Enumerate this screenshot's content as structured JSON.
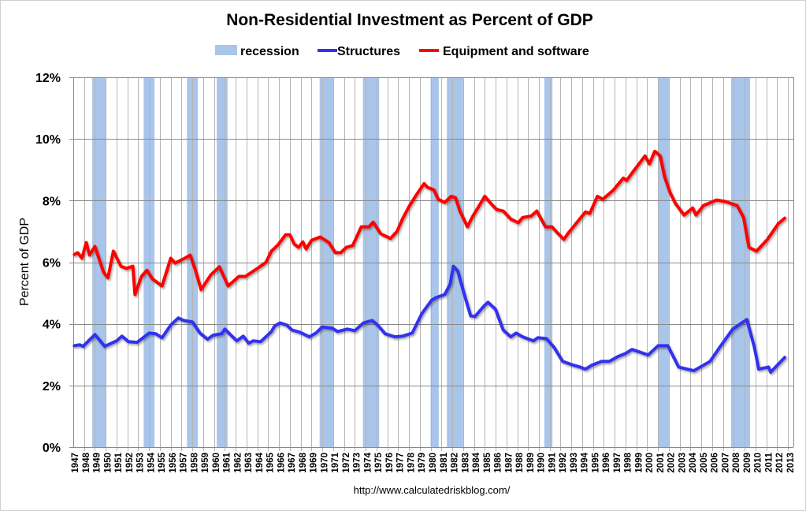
{
  "chart_data": {
    "type": "line",
    "title": "Non-Residential Investment as Percent of GDP",
    "xlabel": "",
    "ylabel": "Percent of GDP",
    "source_note": "http://www.calculatedriskblog.com/",
    "xlim": [
      1947,
      2013.5
    ],
    "ylim": [
      0,
      12
    ],
    "y_ticks": [
      "0%",
      "2%",
      "4%",
      "6%",
      "8%",
      "10%",
      "12%"
    ],
    "y_tick_values": [
      0,
      2,
      4,
      6,
      8,
      10,
      12
    ],
    "x_ticks": [
      "1947",
      "1948",
      "1949",
      "1950",
      "1951",
      "1952",
      "1953",
      "1954",
      "1955",
      "1956",
      "1957",
      "1958",
      "1959",
      "1960",
      "1961",
      "1962",
      "1963",
      "1964",
      "1965",
      "1966",
      "1967",
      "1968",
      "1969",
      "1970",
      "1971",
      "1972",
      "1973",
      "1974",
      "1975",
      "1976",
      "1977",
      "1978",
      "1979",
      "1980",
      "1981",
      "1982",
      "1983",
      "1984",
      "1985",
      "1986",
      "1987",
      "1988",
      "1989",
      "1990",
      "1991",
      "1992",
      "1993",
      "1994",
      "1995",
      "1996",
      "1997",
      "1998",
      "1999",
      "2000",
      "2001",
      "2002",
      "2003",
      "2004",
      "2005",
      "2006",
      "2007",
      "2008",
      "2009",
      "2010",
      "2011",
      "2012",
      "2013"
    ],
    "grid": {
      "horizontal": true,
      "vertical": true
    },
    "legend": {
      "placement": "top",
      "entries": [
        {
          "label": "recession",
          "kind": "area",
          "color": "#a9c5ea"
        },
        {
          "label": "Structures",
          "kind": "line",
          "color": "#3333ee"
        },
        {
          "label": "Equipment and software",
          "kind": "line",
          "color": "#ff0000"
        }
      ]
    },
    "recessions": [
      [
        1948.75,
        1950.0
      ],
      [
        1953.5,
        1954.5
      ],
      [
        1957.5,
        1958.5
      ],
      [
        1960.25,
        1961.25
      ],
      [
        1969.75,
        1971.0
      ],
      [
        1973.75,
        1975.25
      ],
      [
        1980.0,
        1980.75
      ],
      [
        1981.5,
        1983.0
      ],
      [
        1990.5,
        1991.25
      ],
      [
        2001.0,
        2002.0
      ],
      [
        2007.75,
        2009.5
      ]
    ],
    "series": [
      {
        "name": "Structures",
        "color": "#3333ee",
        "points": [
          [
            1947.1,
            3.29
          ],
          [
            1947.6,
            3.32
          ],
          [
            1947.9,
            3.27
          ],
          [
            1949.0,
            3.65
          ],
          [
            1949.9,
            3.27
          ],
          [
            1951.0,
            3.45
          ],
          [
            1951.5,
            3.6
          ],
          [
            1952.1,
            3.42
          ],
          [
            1952.9,
            3.4
          ],
          [
            1954.0,
            3.7
          ],
          [
            1954.6,
            3.68
          ],
          [
            1955.2,
            3.55
          ],
          [
            1956.0,
            3.96
          ],
          [
            1956.7,
            4.19
          ],
          [
            1957.2,
            4.11
          ],
          [
            1958.0,
            4.06
          ],
          [
            1958.7,
            3.7
          ],
          [
            1959.4,
            3.5
          ],
          [
            1959.9,
            3.63
          ],
          [
            1960.7,
            3.68
          ],
          [
            1961.0,
            3.83
          ],
          [
            1961.5,
            3.65
          ],
          [
            1962.1,
            3.45
          ],
          [
            1962.7,
            3.6
          ],
          [
            1963.2,
            3.37
          ],
          [
            1963.6,
            3.45
          ],
          [
            1964.3,
            3.42
          ],
          [
            1965.3,
            3.75
          ],
          [
            1965.6,
            3.93
          ],
          [
            1966.1,
            4.03
          ],
          [
            1966.7,
            3.96
          ],
          [
            1967.2,
            3.8
          ],
          [
            1967.9,
            3.73
          ],
          [
            1968.8,
            3.58
          ],
          [
            1969.4,
            3.7
          ],
          [
            1970.0,
            3.9
          ],
          [
            1970.9,
            3.86
          ],
          [
            1971.4,
            3.75
          ],
          [
            1972.3,
            3.83
          ],
          [
            1973.0,
            3.78
          ],
          [
            1973.8,
            4.03
          ],
          [
            1974.6,
            4.11
          ],
          [
            1975.1,
            3.96
          ],
          [
            1975.8,
            3.68
          ],
          [
            1976.7,
            3.58
          ],
          [
            1977.4,
            3.6
          ],
          [
            1978.3,
            3.7
          ],
          [
            1979.0,
            4.2
          ],
          [
            1979.2,
            4.34
          ],
          [
            1980.1,
            4.77
          ],
          [
            1980.5,
            4.85
          ],
          [
            1981.3,
            4.95
          ],
          [
            1981.8,
            5.28
          ],
          [
            1982.1,
            5.87
          ],
          [
            1982.5,
            5.72
          ],
          [
            1983.2,
            4.85
          ],
          [
            1983.7,
            4.26
          ],
          [
            1984.1,
            4.24
          ],
          [
            1984.9,
            4.57
          ],
          [
            1985.3,
            4.7
          ],
          [
            1986.0,
            4.47
          ],
          [
            1986.7,
            3.8
          ],
          [
            1987.4,
            3.58
          ],
          [
            1987.9,
            3.7
          ],
          [
            1988.5,
            3.58
          ],
          [
            1989.5,
            3.45
          ],
          [
            1989.9,
            3.55
          ],
          [
            1990.7,
            3.52
          ],
          [
            1991.4,
            3.24
          ],
          [
            1992.2,
            2.78
          ],
          [
            1993.0,
            2.68
          ],
          [
            1993.8,
            2.6
          ],
          [
            1994.3,
            2.53
          ],
          [
            1994.9,
            2.66
          ],
          [
            1995.8,
            2.78
          ],
          [
            1996.5,
            2.78
          ],
          [
            1997.3,
            2.94
          ],
          [
            1998.0,
            3.04
          ],
          [
            1998.6,
            3.17
          ],
          [
            2000.1,
            2.99
          ],
          [
            2001.0,
            3.29
          ],
          [
            2001.9,
            3.29
          ],
          [
            2002.9,
            2.6
          ],
          [
            2004.3,
            2.48
          ],
          [
            2005.8,
            2.78
          ],
          [
            2006.7,
            3.24
          ],
          [
            2007.9,
            3.83
          ],
          [
            2009.2,
            4.14
          ],
          [
            2009.9,
            3.24
          ],
          [
            2010.3,
            2.53
          ],
          [
            2011.2,
            2.6
          ],
          [
            2011.4,
            2.43
          ],
          [
            2012.7,
            2.91
          ]
        ]
      },
      {
        "name": "Equipment and software",
        "color": "#ff0000",
        "points": [
          [
            1947.1,
            6.25
          ],
          [
            1947.4,
            6.31
          ],
          [
            1947.8,
            6.13
          ],
          [
            1948.2,
            6.64
          ],
          [
            1948.5,
            6.23
          ],
          [
            1949.0,
            6.51
          ],
          [
            1949.8,
            5.67
          ],
          [
            1950.2,
            5.49
          ],
          [
            1950.7,
            6.36
          ],
          [
            1951.4,
            5.87
          ],
          [
            1951.9,
            5.8
          ],
          [
            1952.5,
            5.87
          ],
          [
            1952.7,
            4.95
          ],
          [
            1953.3,
            5.54
          ],
          [
            1953.8,
            5.74
          ],
          [
            1954.3,
            5.46
          ],
          [
            1955.2,
            5.23
          ],
          [
            1956.0,
            6.13
          ],
          [
            1956.4,
            5.97
          ],
          [
            1957.3,
            6.13
          ],
          [
            1957.8,
            6.23
          ],
          [
            1958.3,
            5.72
          ],
          [
            1958.8,
            5.11
          ],
          [
            1959.7,
            5.59
          ],
          [
            1960.5,
            5.85
          ],
          [
            1961.3,
            5.23
          ],
          [
            1962.3,
            5.54
          ],
          [
            1962.9,
            5.54
          ],
          [
            1964.1,
            5.82
          ],
          [
            1964.8,
            6.0
          ],
          [
            1965.3,
            6.36
          ],
          [
            1965.9,
            6.56
          ],
          [
            1966.6,
            6.89
          ],
          [
            1967.0,
            6.89
          ],
          [
            1967.4,
            6.59
          ],
          [
            1967.8,
            6.48
          ],
          [
            1968.2,
            6.66
          ],
          [
            1968.5,
            6.43
          ],
          [
            1969.0,
            6.71
          ],
          [
            1969.8,
            6.82
          ],
          [
            1970.6,
            6.64
          ],
          [
            1971.2,
            6.31
          ],
          [
            1971.7,
            6.31
          ],
          [
            1972.2,
            6.48
          ],
          [
            1972.8,
            6.54
          ],
          [
            1973.6,
            7.15
          ],
          [
            1974.3,
            7.15
          ],
          [
            1974.7,
            7.3
          ],
          [
            1975.4,
            6.92
          ],
          [
            1976.3,
            6.77
          ],
          [
            1976.9,
            7.0
          ],
          [
            1977.4,
            7.4
          ],
          [
            1978.0,
            7.8
          ],
          [
            1978.6,
            8.14
          ],
          [
            1979.4,
            8.55
          ],
          [
            1979.7,
            8.43
          ],
          [
            1980.3,
            8.35
          ],
          [
            1980.7,
            8.04
          ],
          [
            1981.3,
            7.94
          ],
          [
            1981.9,
            8.14
          ],
          [
            1982.3,
            8.09
          ],
          [
            1982.7,
            7.66
          ],
          [
            1983.4,
            7.15
          ],
          [
            1983.9,
            7.5
          ],
          [
            1984.5,
            7.84
          ],
          [
            1985.0,
            8.14
          ],
          [
            1985.6,
            7.89
          ],
          [
            1986.1,
            7.71
          ],
          [
            1986.7,
            7.66
          ],
          [
            1987.4,
            7.4
          ],
          [
            1988.1,
            7.28
          ],
          [
            1988.5,
            7.45
          ],
          [
            1989.3,
            7.5
          ],
          [
            1989.8,
            7.66
          ],
          [
            1990.6,
            7.15
          ],
          [
            1991.2,
            7.15
          ],
          [
            1991.4,
            7.07
          ],
          [
            1992.3,
            6.74
          ],
          [
            1992.7,
            6.94
          ],
          [
            1993.6,
            7.33
          ],
          [
            1994.3,
            7.63
          ],
          [
            1994.7,
            7.58
          ],
          [
            1995.4,
            8.14
          ],
          [
            1995.9,
            8.04
          ],
          [
            1996.9,
            8.35
          ],
          [
            1997.8,
            8.73
          ],
          [
            1998.1,
            8.65
          ],
          [
            1998.7,
            8.94
          ],
          [
            1999.8,
            9.45
          ],
          [
            2000.2,
            9.19
          ],
          [
            2000.7,
            9.6
          ],
          [
            2001.2,
            9.45
          ],
          [
            2001.6,
            8.78
          ],
          [
            2002.1,
            8.27
          ],
          [
            2002.6,
            7.91
          ],
          [
            2003.4,
            7.53
          ],
          [
            2004.2,
            7.76
          ],
          [
            2004.5,
            7.53
          ],
          [
            2005.2,
            7.84
          ],
          [
            2006.4,
            8.02
          ],
          [
            2007.2,
            7.97
          ],
          [
            2008.3,
            7.84
          ],
          [
            2008.9,
            7.45
          ],
          [
            2009.4,
            6.48
          ],
          [
            2010.1,
            6.36
          ],
          [
            2011.1,
            6.74
          ],
          [
            2012.1,
            7.25
          ],
          [
            2012.7,
            7.43
          ]
        ]
      }
    ]
  }
}
